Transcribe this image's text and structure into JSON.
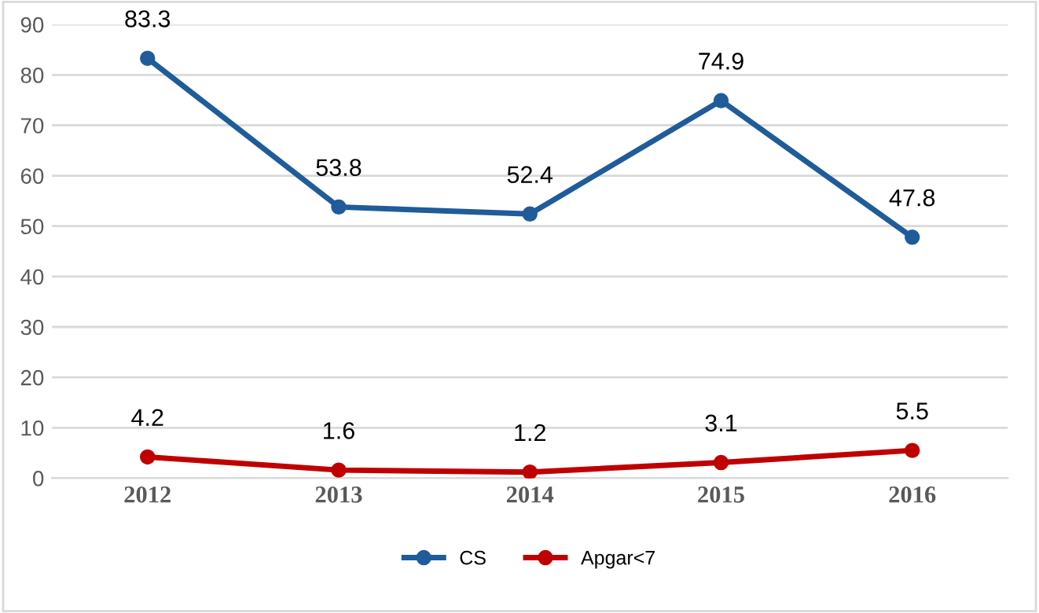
{
  "chart_data": {
    "type": "line",
    "categories": [
      "2012",
      "2013",
      "2014",
      "2015",
      "2016"
    ],
    "series": [
      {
        "name": "CS",
        "color": "#1f5c99",
        "values": [
          83.3,
          53.8,
          52.4,
          74.9,
          47.8
        ]
      },
      {
        "name": "Apgar<7",
        "color": "#c00000",
        "values": [
          4.2,
          1.6,
          1.2,
          3.1,
          5.5
        ]
      }
    ],
    "ylim": [
      0,
      90
    ],
    "yticks": [
      0,
      10,
      20,
      30,
      40,
      50,
      60,
      70,
      80,
      90
    ],
    "grid": "y",
    "legend": "bottom",
    "marker": "circle",
    "line_style": "solid",
    "data_labels": true
  }
}
